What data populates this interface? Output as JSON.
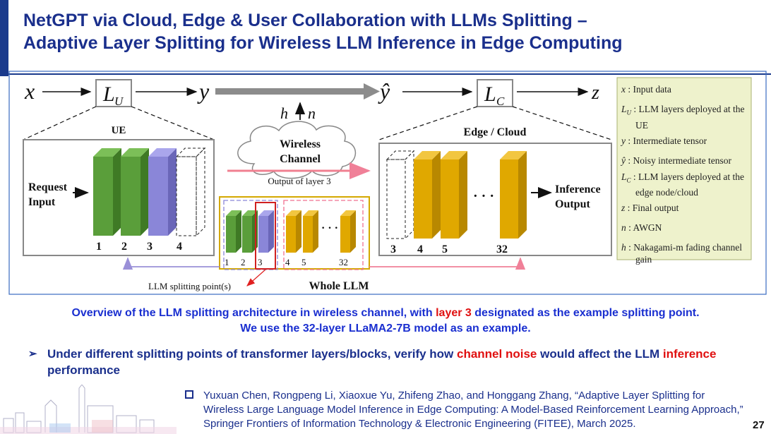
{
  "title": {
    "line1": "NetGPT via Cloud, Edge & User Collaboration with LLMs Splitting –",
    "line2": "Adaptive Layer Splitting for Wireless LLM Inference in Edge Computing"
  },
  "diagram": {
    "flow": {
      "x": "x",
      "lu_base": "L",
      "lu_sub": "U",
      "y": "y",
      "yhat": "ŷ",
      "lc_base": "L",
      "lc_sub": "C",
      "z": "z",
      "h": "h",
      "n": "n"
    },
    "ue": {
      "title": "UE",
      "input_line1": "Request",
      "input_line2": "Input",
      "layer_labels": [
        "1",
        "2",
        "3",
        "4"
      ]
    },
    "channel": {
      "line1": "Wireless",
      "line2": "Channel",
      "output_label": "Output of layer 3"
    },
    "edge": {
      "title": "Edge / Cloud",
      "output_line1": "Inference",
      "output_line2": "Output",
      "layer_labels": [
        "3",
        "4",
        "5",
        "32"
      ],
      "ellipsis": "· · ·"
    },
    "whole": {
      "title": "Whole LLM",
      "layer_labels": [
        "1",
        "2",
        "3",
        "4",
        "5",
        "32"
      ],
      "ellipsis": "· · ·",
      "split_label": "LLM splitting point(s)"
    },
    "legend": [
      {
        "sym": "x",
        "text": ": Input data"
      },
      {
        "sym": "LU",
        "text": ": LLM layers deployed at the UE"
      },
      {
        "sym": "y",
        "text": ": Intermediate tensor"
      },
      {
        "sym": "ŷ",
        "text": ": Noisy intermediate tensor"
      },
      {
        "sym": "LC",
        "text": ": LLM layers deployed at the edge node/cloud"
      },
      {
        "sym": "z",
        "text": ": Final output"
      },
      {
        "sym": "n",
        "text": ": AWGN"
      },
      {
        "sym": "h",
        "text": ": Nakagami-m fading channel gain"
      }
    ]
  },
  "caption": {
    "part1": "Overview of the LLM splitting architecture in wireless channel, with ",
    "highlight": "layer 3",
    "part2": " designated as the example splitting point.",
    "line2": "We use the 32-layer LLaMA2-7B model as an example."
  },
  "bullet": {
    "part1": "Under different splitting points of transformer layers/blocks, verify how ",
    "red1": "channel noise",
    "part2": " would affect the LLM ",
    "red2": "inference",
    "part3": " performance"
  },
  "reference": "Yuxuan Chen, Rongpeng Li, Xiaoxue Yu, Zhifeng Zhao, and Honggang Zhang, “Adaptive Layer Splitting for Wireless Large Language Model Inference in Edge Computing: A Model-Based Reinforcement Learning Approach,” Springer Frontiers of Information Technology & Electronic Engineering (FITEE), March 2025.",
  "page_number": "27",
  "colors": {
    "title": "#1a2f8c",
    "caption": "#1a2fd0",
    "highlight": "#e01010",
    "green": "#5a9e3a",
    "gold": "#e0a800",
    "purple": "#8a86d8",
    "legend_bg": "#eef2cc"
  }
}
